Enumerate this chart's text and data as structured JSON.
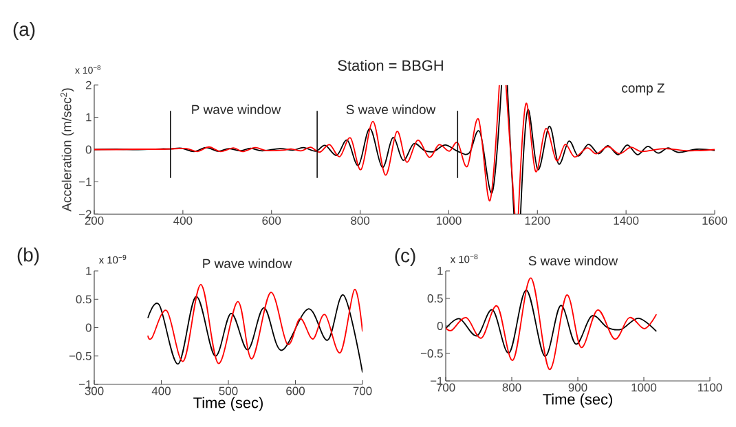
{
  "chart_data": [
    {
      "type": "line",
      "title": "Station = BBGH",
      "ylabel": "Acceleration (m/sec$^{2}$)",
      "annotations": [
        "(a)",
        "x 10$^{−8}$",
        "P wave window",
        "S wave window",
        "comp Z"
      ],
      "xlim": [
        200,
        1600
      ],
      "ylim": [
        -2,
        2
      ],
      "xticks": [
        200,
        400,
        600,
        800,
        1000,
        1200,
        1400,
        1600
      ],
      "yticks": [
        {
          "value": -2,
          "label": "−2"
        },
        {
          "value": -1,
          "label": "−1"
        },
        0,
        1,
        2
      ],
      "ref_lines": [
        {
          "axis": "x",
          "value": 372,
          "color": "#000000"
        },
        {
          "axis": "x",
          "value": 703,
          "color": "#000000"
        },
        {
          "axis": "x",
          "value": 1020,
          "color": "#000000"
        }
      ],
      "series": [
        {
          "color": "#000000",
          "x": [
            200,
            250,
            300,
            350,
            372,
            397,
            425,
            452,
            480,
            504,
            529,
            553,
            579,
            619,
            648,
            672,
            700,
            721,
            747,
            771,
            796,
            822,
            850,
            874,
            897,
            921,
            945,
            966,
            992,
            1021,
            1046,
            1070,
            1098,
            1119,
            1125,
            1132,
            1147,
            1155,
            1162,
            1178,
            1201,
            1227,
            1248,
            1271,
            1292,
            1315,
            1338,
            1359,
            1382,
            1403,
            1426,
            1449,
            1472,
            1495,
            1519,
            1560,
            1600
          ],
          "values": [
            0,
            0.01,
            0,
            0.02,
            0.02,
            0.04,
            -0.06,
            0.06,
            -0.05,
            0.03,
            -0.04,
            0.04,
            -0.04,
            0.03,
            -0.02,
            0.06,
            -0.05,
            0.13,
            -0.18,
            0.29,
            -0.49,
            0.65,
            -0.55,
            0.37,
            -0.33,
            0.18,
            -0.03,
            -0.06,
            0.14,
            -0.06,
            -0.11,
            0.55,
            -1.33,
            2,
            null,
            2,
            -2,
            null,
            -2,
            1.22,
            -0.62,
            0.72,
            -0.45,
            0.26,
            -0.2,
            0.16,
            -0.13,
            0.12,
            -0.16,
            0.14,
            -0.16,
            0.1,
            -0.11,
            0.05,
            -0.09,
            0.01,
            -0.03
          ]
        },
        {
          "color": "#ff0000",
          "x": [
            200,
            250,
            300,
            350,
            372,
            408,
            433,
            459,
            485,
            514,
            535,
            563,
            588,
            626,
            644,
            667,
            688,
            709,
            731,
            754,
            778,
            802,
            829,
            857,
            883,
            905,
            930,
            956,
            978,
            1001,
            1020,
            1042,
            1067,
            1093,
            1114,
            1121,
            1129,
            1149,
            1153,
            1157,
            1174,
            1196,
            1219,
            1243,
            1263,
            1284,
            1312,
            1333,
            1359,
            1385,
            1411,
            1436,
            1488,
            1540,
            1600
          ],
          "values": [
            0,
            0,
            0.01,
            0.01,
            0.02,
            0.03,
            -0.06,
            0.08,
            -0.06,
            0.05,
            -0.06,
            0.06,
            -0.03,
            -0.02,
            0.02,
            -0.04,
            0.07,
            -0.08,
            0.15,
            -0.22,
            0.36,
            -0.62,
            0.87,
            -0.79,
            0.56,
            -0.39,
            0.29,
            -0.24,
            0.15,
            -0.05,
            0.21,
            -0.52,
            0.94,
            -1.58,
            2,
            null,
            2,
            -2,
            null,
            -2,
            1.42,
            -0.68,
            0.65,
            -0.34,
            0.16,
            -0.23,
            0.05,
            -0.13,
            0.09,
            -0.13,
            0.07,
            -0.06,
            0.03,
            -0.04,
            0
          ]
        }
      ]
    },
    {
      "type": "line",
      "title": "P wave window",
      "xlabel": "Time (sec)",
      "annotations": [
        "(b)",
        "x 10$^{−9}$"
      ],
      "xlim": [
        300,
        700
      ],
      "ylim": [
        -1,
        1
      ],
      "xticks": [
        300,
        400,
        500,
        600,
        700
      ],
      "yticks": [
        {
          "value": -1,
          "label": "−1"
        },
        {
          "value": -0.5,
          "label": "−0.5"
        },
        0,
        0.5,
        1
      ],
      "series": [
        {
          "color": "#000000",
          "x": [
            380,
            397,
            425,
            452,
            480,
            504,
            529,
            553,
            579,
            619,
            648,
            672,
            700
          ],
          "values": [
            0.17,
            0.4,
            -0.64,
            0.55,
            -0.5,
            0.25,
            -0.39,
            0.35,
            -0.4,
            0.33,
            -0.22,
            0.57,
            -0.79
          ]
        },
        {
          "color": "#ff0000",
          "x": [
            380,
            386,
            408,
            433,
            459,
            485,
            514,
            535,
            563,
            588,
            607,
            626,
            644,
            667,
            688,
            700
          ],
          "values": [
            -0.14,
            -0.18,
            0.3,
            -0.59,
            0.76,
            -0.63,
            0.46,
            -0.55,
            0.62,
            -0.29,
            0.16,
            -0.2,
            0.23,
            -0.44,
            0.67,
            -0.07
          ]
        }
      ]
    },
    {
      "type": "line",
      "title": "S wave window",
      "xlabel": "Time (sec)",
      "annotations": [
        "(c)",
        "x 10$^{−8}$"
      ],
      "xlim": [
        700,
        1100
      ],
      "ylim": [
        -1,
        1
      ],
      "xticks": [
        700,
        800,
        900,
        1000,
        1100
      ],
      "yticks": [
        {
          "value": -1,
          "label": "−1"
        },
        {
          "value": -0.5,
          "label": "−0.5"
        },
        0,
        0.5,
        1
      ],
      "series": [
        {
          "color": "#000000",
          "x": [
            700,
            721,
            747,
            771,
            796,
            822,
            850,
            874,
            897,
            921,
            945,
            966,
            992,
            1019
          ],
          "values": [
            -0.05,
            0.13,
            -0.18,
            0.29,
            -0.49,
            0.65,
            -0.55,
            0.37,
            -0.33,
            0.18,
            -0.03,
            -0.06,
            0.14,
            -0.1
          ]
        },
        {
          "color": "#ff0000",
          "x": [
            700,
            709,
            731,
            754,
            778,
            802,
            829,
            857,
            883,
            905,
            930,
            956,
            978,
            1001,
            1019
          ],
          "values": [
            -0.03,
            -0.08,
            0.15,
            -0.22,
            0.36,
            -0.62,
            0.87,
            -0.79,
            0.56,
            -0.39,
            0.29,
            -0.24,
            0.15,
            -0.05,
            0.21
          ]
        }
      ]
    }
  ]
}
